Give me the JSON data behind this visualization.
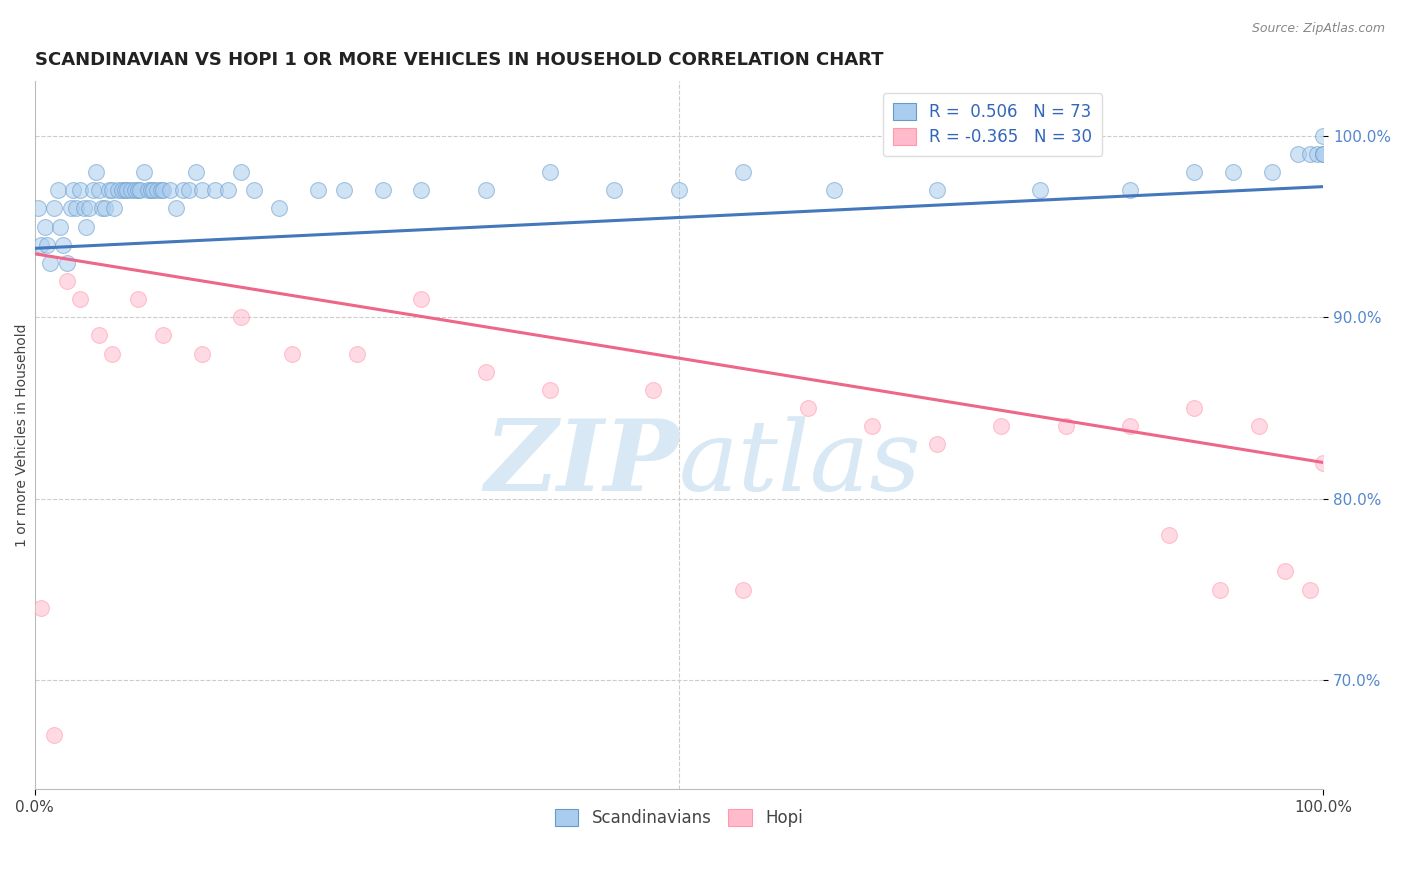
{
  "title": "SCANDINAVIAN VS HOPI 1 OR MORE VEHICLES IN HOUSEHOLD CORRELATION CHART",
  "source_text": "Source: ZipAtlas.com",
  "ylabel": "1 or more Vehicles in Household",
  "xlim": [
    0,
    100
  ],
  "ylim": [
    64,
    103
  ],
  "yticks_right": [
    70,
    80,
    90,
    100
  ],
  "xticks": [
    0,
    100
  ],
  "xtick_labels": [
    "0.0%",
    "100.0%"
  ],
  "legend_labels": [
    "Scandinavians",
    "Hopi"
  ],
  "legend_r_blue": "R =  0.506   N = 73",
  "legend_r_pink": "R = -0.365   N = 30",
  "blue_fill": "#AACCEE",
  "pink_fill": "#FFBBCC",
  "blue_edge": "#6699CC",
  "pink_edge": "#FF99AA",
  "blue_line": "#4477BB",
  "pink_line": "#EE6688",
  "watermark_color": "#D8E8F5",
  "background_color": "#FFFFFF",
  "grid_color": "#CCCCCC",
  "scandinavian_x": [
    0.3,
    0.5,
    0.8,
    1.0,
    1.2,
    1.5,
    1.8,
    2.0,
    2.2,
    2.5,
    2.8,
    3.0,
    3.2,
    3.5,
    3.8,
    4.0,
    4.2,
    4.5,
    4.8,
    5.0,
    5.2,
    5.5,
    5.8,
    6.0,
    6.2,
    6.5,
    6.8,
    7.0,
    7.2,
    7.5,
    7.8,
    8.0,
    8.2,
    8.5,
    8.8,
    9.0,
    9.2,
    9.5,
    9.8,
    10.0,
    10.5,
    11.0,
    11.5,
    12.0,
    12.5,
    13.0,
    14.0,
    15.0,
    16.0,
    17.0,
    19.0,
    22.0,
    24.0,
    27.0,
    30.0,
    35.0,
    40.0,
    45.0,
    50.0,
    55.0,
    62.0,
    70.0,
    78.0,
    85.0,
    90.0,
    93.0,
    96.0,
    98.0,
    99.0,
    99.5,
    100.0,
    100.0,
    100.0
  ],
  "scandinavian_y": [
    96,
    94,
    95,
    94,
    93,
    96,
    97,
    95,
    94,
    93,
    96,
    97,
    96,
    97,
    96,
    95,
    96,
    97,
    98,
    97,
    96,
    96,
    97,
    97,
    96,
    97,
    97,
    97,
    97,
    97,
    97,
    97,
    97,
    98,
    97,
    97,
    97,
    97,
    97,
    97,
    97,
    96,
    97,
    97,
    98,
    97,
    97,
    97,
    98,
    97,
    96,
    97,
    97,
    97,
    97,
    97,
    98,
    97,
    97,
    98,
    97,
    97,
    97,
    97,
    98,
    98,
    98,
    99,
    99,
    99,
    99,
    99,
    100
  ],
  "hopi_x": [
    0.5,
    1.5,
    2.5,
    3.5,
    5.0,
    6.0,
    8.0,
    10.0,
    13.0,
    16.0,
    20.0,
    25.0,
    30.0,
    35.0,
    40.0,
    48.0,
    55.0,
    60.0,
    65.0,
    70.0,
    75.0,
    80.0,
    85.0,
    88.0,
    90.0,
    92.0,
    95.0,
    97.0,
    99.0,
    100.0
  ],
  "hopi_y": [
    74,
    67,
    92,
    91,
    89,
    88,
    91,
    89,
    88,
    90,
    88,
    88,
    91,
    87,
    86,
    86,
    75,
    85,
    84,
    83,
    84,
    84,
    84,
    78,
    85,
    75,
    84,
    76,
    75,
    82
  ],
  "blue_trend_x": [
    0,
    100
  ],
  "blue_trend_y": [
    93.8,
    97.2
  ],
  "pink_trend_x": [
    0,
    100
  ],
  "pink_trend_y": [
    93.5,
    82.0
  ],
  "dot_alpha": 0.55,
  "dot_size": 130,
  "title_fontsize": 13,
  "axis_label_fontsize": 10,
  "tick_fontsize": 11,
  "legend_fontsize": 12
}
